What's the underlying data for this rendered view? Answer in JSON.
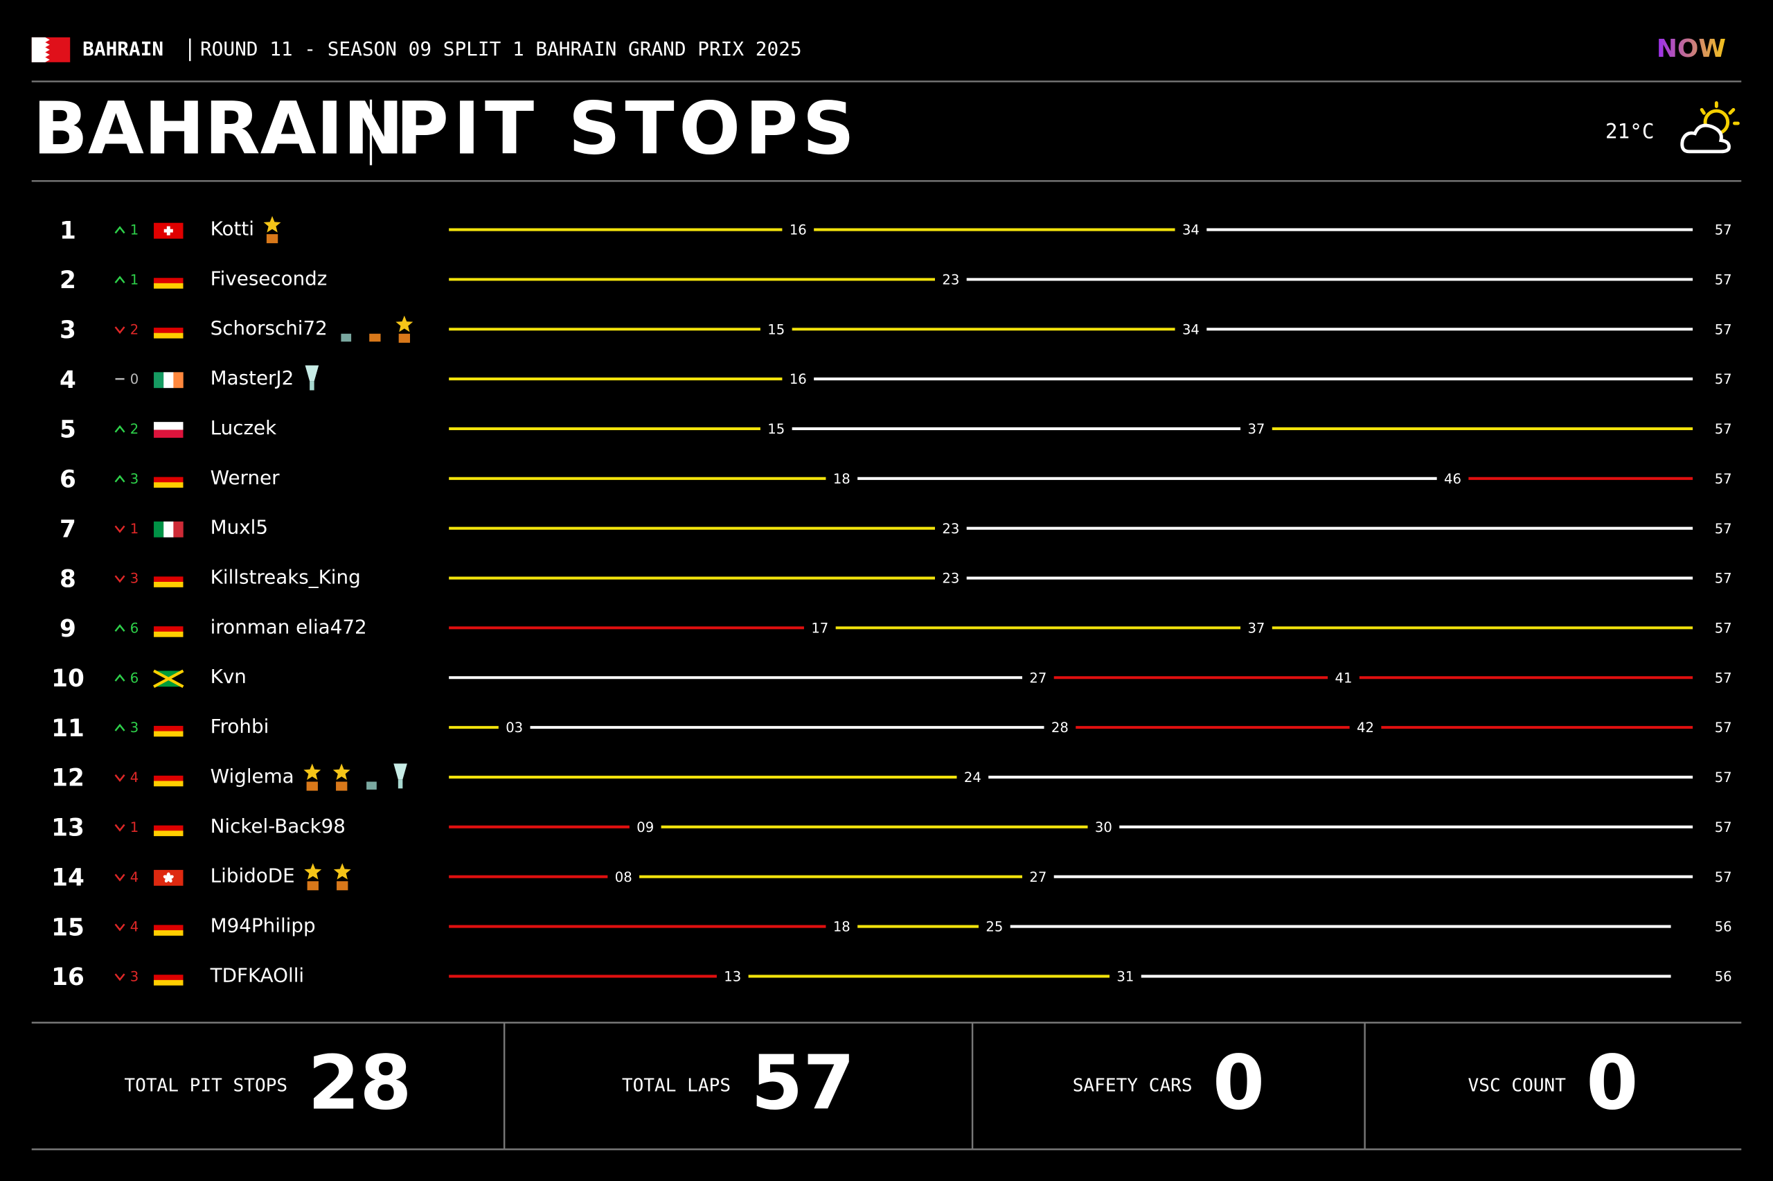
{
  "header": {
    "country": "BAHRAIN",
    "event": "ROUND 11 - SEASON 09 SPLIT 1 BAHRAIN GRAND PRIX 2025",
    "logo": "NOW"
  },
  "title": {
    "left": "BAHRAIN",
    "right": "PIT STOPS",
    "temperature": "21°C"
  },
  "colors": {
    "yellow": "#f2e30c",
    "white": "#ffffff",
    "red": "#e00f0f"
  },
  "rows": [
    {
      "position": 1,
      "trend": "up",
      "change": 1,
      "flag": "CH",
      "driver": "Kotti",
      "awards": [
        "star"
      ],
      "stops": [
        16,
        34
      ],
      "stints": [
        "yellow",
        "yellow",
        "white"
      ],
      "final": 57
    },
    {
      "position": 2,
      "trend": "up",
      "change": 1,
      "flag": "DE",
      "driver": "Fivesecondz",
      "awards": [],
      "stops": [
        23
      ],
      "stints": [
        "yellow",
        "white"
      ],
      "final": 57
    },
    {
      "position": 3,
      "trend": "down",
      "change": 2,
      "flag": "DE",
      "driver": "Schorschi72",
      "awards": [
        "silver-trophy",
        "trophy",
        "star"
      ],
      "stops": [
        15,
        34
      ],
      "stints": [
        "yellow",
        "yellow",
        "white"
      ],
      "final": 57
    },
    {
      "position": 4,
      "trend": "same",
      "change": 0,
      "flag": "IE",
      "driver": "MasterJ2",
      "awards": [
        "silver-cup"
      ],
      "stops": [
        16
      ],
      "stints": [
        "yellow",
        "white"
      ],
      "final": 57
    },
    {
      "position": 5,
      "trend": "up",
      "change": 2,
      "flag": "PL",
      "driver": "Luczek",
      "awards": [],
      "stops": [
        15,
        37
      ],
      "stints": [
        "yellow",
        "white",
        "yellow"
      ],
      "final": 57
    },
    {
      "position": 6,
      "trend": "up",
      "change": 3,
      "flag": "DE",
      "driver": "Werner",
      "awards": [],
      "stops": [
        18,
        46
      ],
      "stints": [
        "yellow",
        "white",
        "red"
      ],
      "final": 57
    },
    {
      "position": 7,
      "trend": "down",
      "change": 1,
      "flag": "IT",
      "driver": "Muxl5",
      "awards": [],
      "stops": [
        23
      ],
      "stints": [
        "yellow",
        "white"
      ],
      "final": 57
    },
    {
      "position": 8,
      "trend": "down",
      "change": 3,
      "flag": "DE",
      "driver": "Killstreaks_King",
      "awards": [],
      "stops": [
        23
      ],
      "stints": [
        "yellow",
        "white"
      ],
      "final": 57
    },
    {
      "position": 9,
      "trend": "up",
      "change": 6,
      "flag": "DE",
      "driver": "ironman elia472",
      "awards": [],
      "stops": [
        17,
        37
      ],
      "stints": [
        "red",
        "yellow",
        "yellow"
      ],
      "final": 57
    },
    {
      "position": 10,
      "trend": "up",
      "change": 6,
      "flag": "JM",
      "driver": "Kvn",
      "awards": [],
      "stops": [
        27,
        41
      ],
      "stints": [
        "white",
        "red",
        "red"
      ],
      "final": 57
    },
    {
      "position": 11,
      "trend": "up",
      "change": 3,
      "flag": "DE",
      "driver": "Frohbi",
      "awards": [],
      "stops": [
        {
          "value": 3,
          "label": "03"
        },
        28,
        42
      ],
      "stints": [
        "yellow",
        "white",
        "red",
        "red"
      ],
      "final": 57
    },
    {
      "position": 12,
      "trend": "down",
      "change": 4,
      "flag": "DE",
      "driver": "Wiglema",
      "awards": [
        "star",
        "star",
        "silver-trophy",
        "silver-cup"
      ],
      "stops": [
        24
      ],
      "stints": [
        "yellow",
        "white"
      ],
      "final": 57
    },
    {
      "position": 13,
      "trend": "down",
      "change": 1,
      "flag": "DE",
      "driver": "Nickel-Back98",
      "awards": [],
      "stops": [
        {
          "value": 9,
          "label": "09"
        },
        30
      ],
      "stints": [
        "red",
        "yellow",
        "white"
      ],
      "final": 57
    },
    {
      "position": 14,
      "trend": "down",
      "change": 4,
      "flag": "HK",
      "driver": "LibidoDE",
      "awards": [
        "star",
        "star"
      ],
      "stops": [
        {
          "value": 8,
          "label": "08"
        },
        27
      ],
      "stints": [
        "red",
        "yellow",
        "white"
      ],
      "final": 57
    },
    {
      "position": 15,
      "trend": "down",
      "change": 4,
      "flag": "DE",
      "driver": "M94Philipp",
      "awards": [],
      "stops": [
        18,
        25
      ],
      "stints": [
        "red",
        "yellow",
        "white"
      ],
      "final": 56
    },
    {
      "position": 16,
      "trend": "down",
      "change": 3,
      "flag": "DE",
      "driver": "TDFKAOlli",
      "awards": [],
      "stops": [
        13,
        31
      ],
      "stints": [
        "red",
        "yellow",
        "white"
      ],
      "final": 56
    }
  ],
  "stats": [
    {
      "label": "TOTAL PIT STOPS",
      "value": 28
    },
    {
      "label": "TOTAL LAPS",
      "value": 57
    },
    {
      "label": "SAFETY CARS",
      "value": 0
    },
    {
      "label": "VSC COUNT",
      "value": 0
    }
  ]
}
